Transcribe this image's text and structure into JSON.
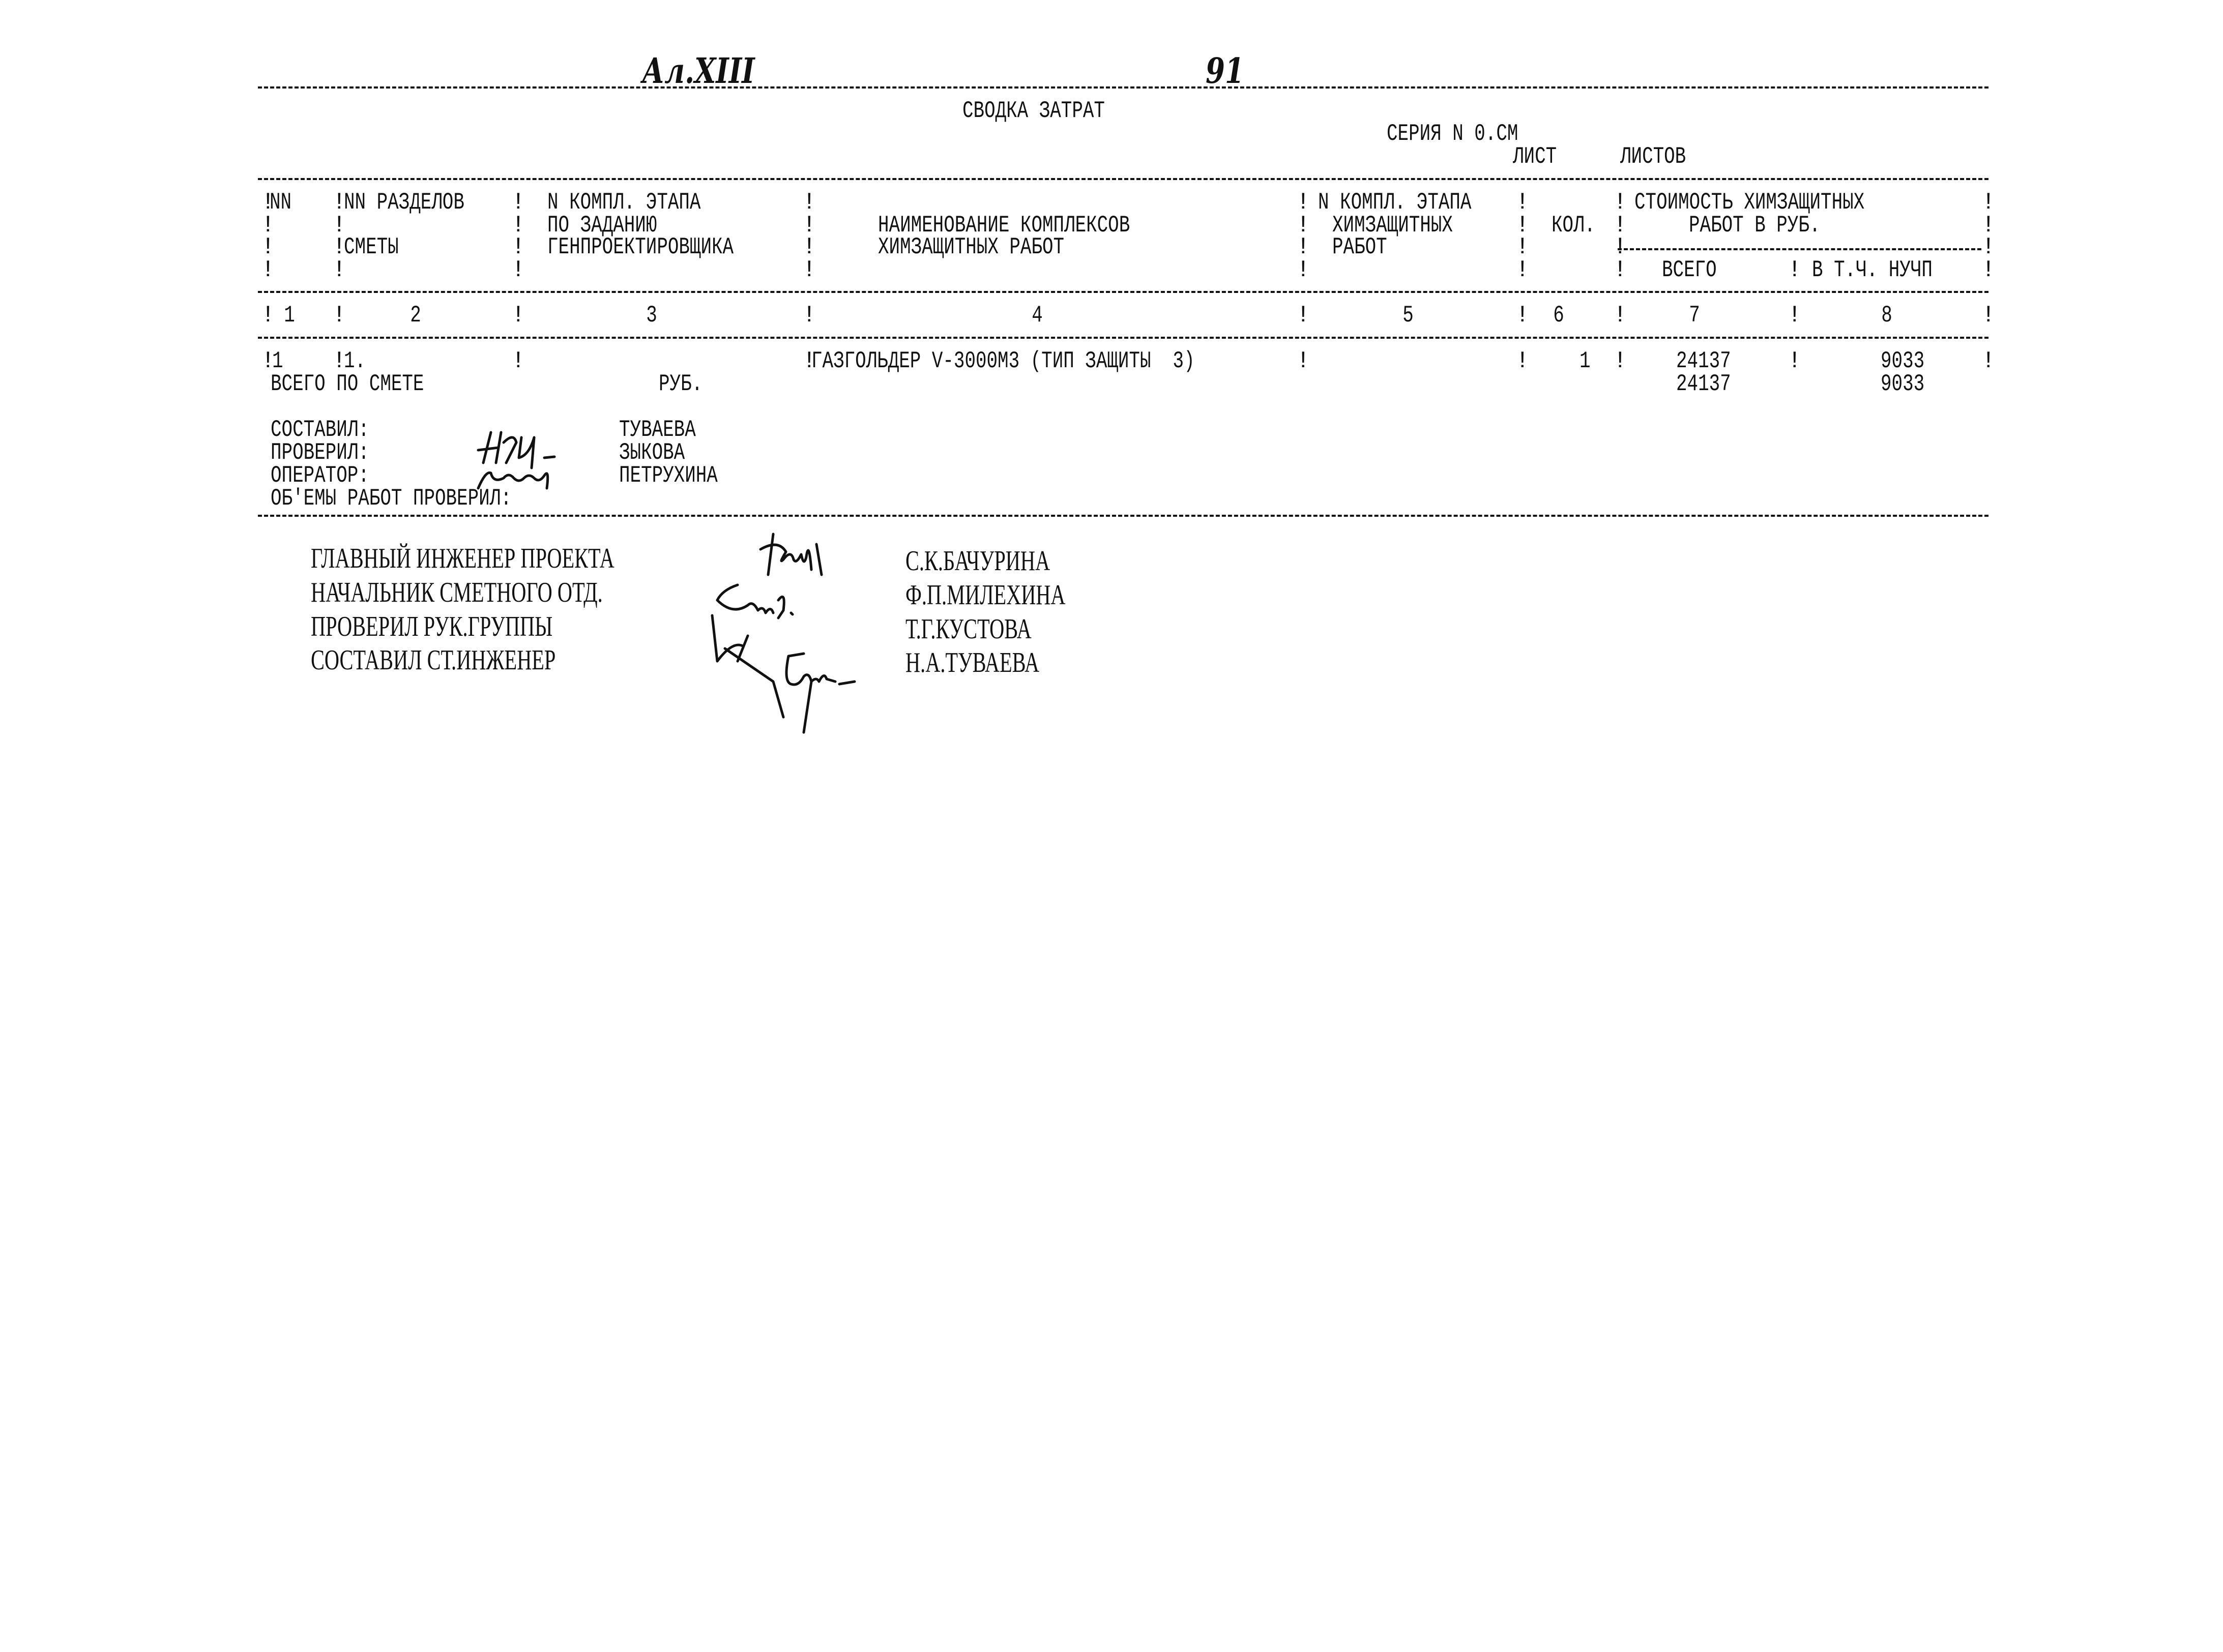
{
  "handwritten": {
    "album": "Ал.XIII",
    "page": "91"
  },
  "title": "СВОДКА ЗАТРАТ",
  "series": "СЕРИЯ N 0.СМ",
  "sheet_label": "ЛИСТ",
  "sheets_label": "ЛИСТОВ",
  "table": {
    "headers": {
      "col1": "NN",
      "col2": [
        "NN РАЗДЕЛОВ",
        "СМЕТЫ"
      ],
      "col3": [
        "N КОМПЛ. ЭТАПА",
        "ПО ЗАДАНИЮ",
        "ГЕНПРОЕКТИРОВЩИКА"
      ],
      "col4": [
        "НАИМЕНОВАНИЕ КОМПЛЕКСОВ",
        "ХИМЗАЩИТНЫХ РАБОТ"
      ],
      "col5": [
        "N КОМПЛ. ЭТАПА",
        "ХИМЗАЩИТНЫХ",
        "РАБОТ"
      ],
      "col6": "КОЛ.",
      "cost_group": [
        "СТОИМОСТЬ ХИМЗАЩИТНЫХ",
        "РАБОТ В РУБ."
      ],
      "col7": "ВСЕГО",
      "col8": "В Т.Ч. НУЧП"
    },
    "column_numbers": [
      "1",
      "2",
      "3",
      "4",
      "5",
      "6",
      "7",
      "8"
    ],
    "rows": [
      {
        "nn": "1",
        "section": "1.",
        "name": "ГАЗГОЛЬДЕР V-3000М3 (ТИП ЗАЩИТЫ  3)",
        "qty": "1",
        "total": "24137",
        "incl_nuchp": "9033"
      }
    ],
    "totals": {
      "label": "ВСЕГО ПО СМЕТЕ",
      "unit": "РУБ.",
      "total": "24137",
      "incl_nuchp": "9033"
    }
  },
  "signoff": [
    {
      "role": "СОСТАВИЛ:",
      "name": "ТУВАЕВА"
    },
    {
      "role": "ПРОВЕРИЛ:",
      "name": "ЗЫКОВА"
    },
    {
      "role": "ОПЕРАТОР:",
      "name": "ПЕТРУХИНА"
    },
    {
      "role": "ОБ'ЕМЫ РАБОТ ПРОВЕРИЛ:",
      "name": ""
    }
  ],
  "approvals": [
    {
      "role": "ГЛАВНЫЙ ИНЖЕНЕР ПРОЕКТА",
      "name": "С.К.БАЧУРИНА"
    },
    {
      "role": "НАЧАЛЬНИК СМЕТНОГО ОТД.",
      "name": "Ф.П.МИЛЕХИНА"
    },
    {
      "role": "ПРОВЕРИЛ РУК.ГРУППЫ",
      "name": "Т.Г.КУСТОВА"
    },
    {
      "role": "СОСТАВИЛ СТ.ИНЖЕНЕР",
      "name": "Н.А.ТУВАЕВА"
    }
  ]
}
